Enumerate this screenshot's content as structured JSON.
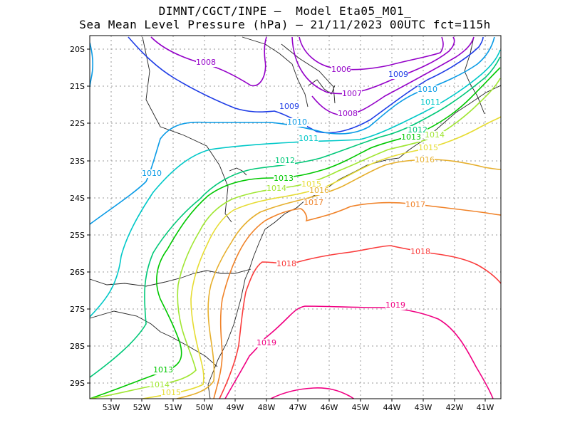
{
  "title": {
    "line1": "DIMNT/CGCT/INPE –  Model Eta05_M01_",
    "line2": "Sea Mean Level Pressure (hPa) – 21/11/2023 00UTC fct=115h"
  },
  "axes": {
    "lon_ticks": [
      "53W",
      "52W",
      "51W",
      "50W",
      "49W",
      "48W",
      "47W",
      "46W",
      "45W",
      "44W",
      "43W",
      "42W",
      "41W"
    ],
    "lat_ticks": [
      "20S",
      "21S",
      "22S",
      "23S",
      "24S",
      "25S",
      "26S",
      "27S",
      "28S",
      "29S"
    ]
  },
  "contour_labels": [
    {
      "text": "1006",
      "color": "#9400c8"
    },
    {
      "text": "1007",
      "color": "#9400c8"
    },
    {
      "text": "1008",
      "color": "#9400c8"
    },
    {
      "text": "1008",
      "color": "#9400c8"
    },
    {
      "text": "1009",
      "color": "#1e3ce6"
    },
    {
      "text": "1009",
      "color": "#1e3ce6"
    },
    {
      "text": "1010",
      "color": "#0a9be6"
    },
    {
      "text": "1010",
      "color": "#0a9be6"
    },
    {
      "text": "1010",
      "color": "#0a9be6"
    },
    {
      "text": "1011",
      "color": "#00c8c8"
    },
    {
      "text": "1011",
      "color": "#00c8c8"
    },
    {
      "text": "1012",
      "color": "#00c878"
    },
    {
      "text": "1012",
      "color": "#00c878"
    },
    {
      "text": "1013",
      "color": "#00c800"
    },
    {
      "text": "1013",
      "color": "#00c800"
    },
    {
      "text": "1013",
      "color": "#00c800"
    },
    {
      "text": "1014",
      "color": "#a0e632"
    },
    {
      "text": "1014",
      "color": "#a0e632"
    },
    {
      "text": "1014",
      "color": "#a0e632"
    },
    {
      "text": "1015",
      "color": "#e6dc32"
    },
    {
      "text": "1015",
      "color": "#e6dc32"
    },
    {
      "text": "1015",
      "color": "#e6dc32"
    },
    {
      "text": "1016",
      "color": "#e6af2d"
    },
    {
      "text": "1016",
      "color": "#e6af2d"
    },
    {
      "text": "1017",
      "color": "#f08228"
    },
    {
      "text": "1017",
      "color": "#f08228"
    },
    {
      "text": "1018",
      "color": "#fa3c3c"
    },
    {
      "text": "1018",
      "color": "#fa3c3c"
    },
    {
      "text": "1019",
      "color": "#f00082"
    },
    {
      "text": "1019",
      "color": "#f00082"
    }
  ]
}
